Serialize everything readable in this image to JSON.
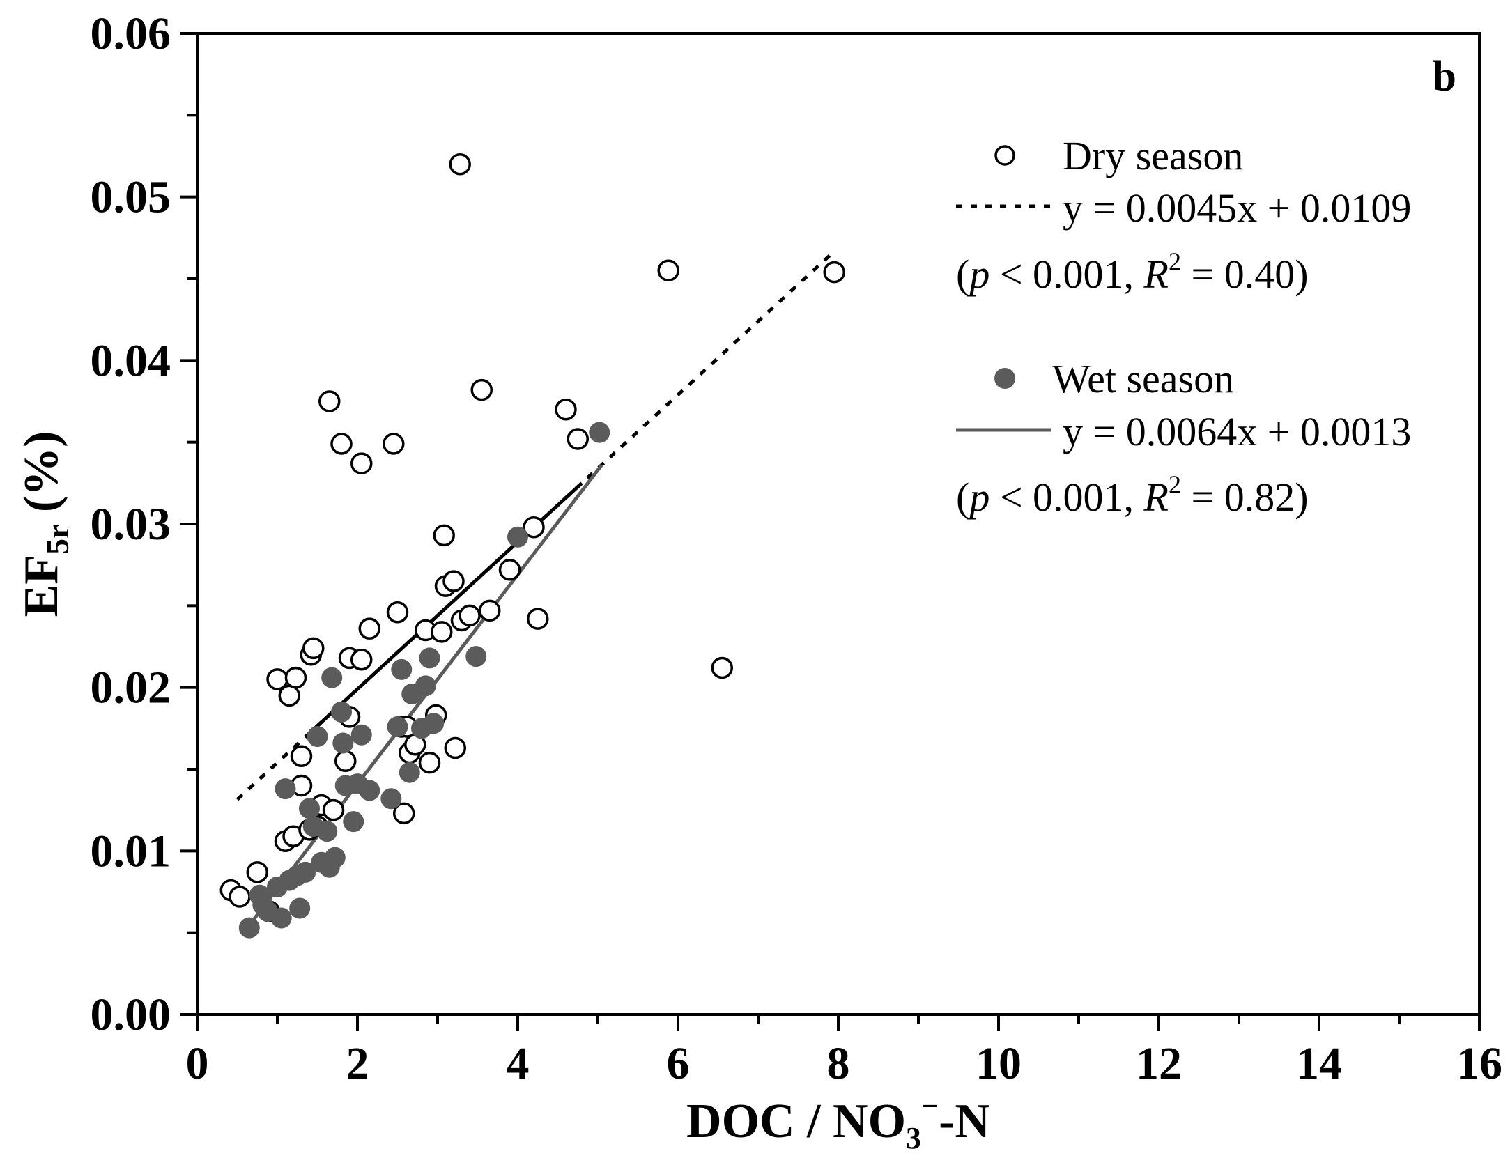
{
  "chart_data": {
    "type": "scatter",
    "panel_label": "b",
    "xlabel": {
      "main": "DOC / NO",
      "sub": "3",
      "sup": "−",
      "tail": "-N"
    },
    "ylabel": {
      "main": "EF",
      "sub": "5r",
      "tail": " (%)"
    },
    "xlim": [
      0,
      16
    ],
    "ylim": [
      0,
      0.06
    ],
    "x_ticks": [
      0,
      2,
      4,
      6,
      8,
      10,
      12,
      14,
      16
    ],
    "x_tick_labels": [
      "0",
      "2",
      "4",
      "6",
      "8",
      "10",
      "12",
      "14",
      "16"
    ],
    "y_ticks": [
      0,
      0.01,
      0.02,
      0.03,
      0.04,
      0.05,
      0.06
    ],
    "y_tick_labels": [
      "0.00",
      "0.01",
      "0.02",
      "0.03",
      "0.04",
      "0.05",
      "0.06"
    ],
    "grid": false,
    "legend_position": "top-right",
    "series": [
      {
        "name": "Dry season",
        "marker": "open-circle",
        "color": "#000000",
        "points": [
          [
            0.42,
            0.0076
          ],
          [
            0.53,
            0.0072
          ],
          [
            0.75,
            0.0087
          ],
          [
            0.9,
            0.0063
          ],
          [
            1.0,
            0.0205
          ],
          [
            1.15,
            0.0195
          ],
          [
            1.1,
            0.0106
          ],
          [
            1.2,
            0.0109
          ],
          [
            1.23,
            0.0206
          ],
          [
            1.3,
            0.0158
          ],
          [
            1.3,
            0.014
          ],
          [
            1.4,
            0.0113
          ],
          [
            1.42,
            0.022
          ],
          [
            1.45,
            0.0224
          ],
          [
            1.5,
            0.0115
          ],
          [
            1.55,
            0.0128
          ],
          [
            1.65,
            0.0375
          ],
          [
            1.7,
            0.0125
          ],
          [
            1.8,
            0.0349
          ],
          [
            1.85,
            0.0155
          ],
          [
            1.9,
            0.0218
          ],
          [
            1.9,
            0.0182
          ],
          [
            2.05,
            0.0337
          ],
          [
            2.05,
            0.0217
          ],
          [
            2.15,
            0.0236
          ],
          [
            2.45,
            0.0349
          ],
          [
            2.5,
            0.0246
          ],
          [
            2.55,
            0.0176
          ],
          [
            2.58,
            0.0123
          ],
          [
            2.62,
            0.0176
          ],
          [
            2.65,
            0.016
          ],
          [
            2.72,
            0.0165
          ],
          [
            2.85,
            0.0235
          ],
          [
            2.9,
            0.0154
          ],
          [
            2.98,
            0.0183
          ],
          [
            3.05,
            0.0234
          ],
          [
            3.08,
            0.0293
          ],
          [
            3.1,
            0.0262
          ],
          [
            3.2,
            0.0265
          ],
          [
            3.22,
            0.0163
          ],
          [
            3.28,
            0.052
          ],
          [
            3.3,
            0.0241
          ],
          [
            3.4,
            0.0244
          ],
          [
            3.55,
            0.0382
          ],
          [
            3.65,
            0.0247
          ],
          [
            3.9,
            0.0272
          ],
          [
            4.2,
            0.0298
          ],
          [
            4.25,
            0.0242
          ],
          [
            4.6,
            0.037
          ],
          [
            4.75,
            0.0352
          ],
          [
            5.88,
            0.0455
          ],
          [
            6.55,
            0.0212
          ],
          [
            7.95,
            0.0454
          ]
        ],
        "fit": {
          "label": "y = 0.0045x + 0.0109",
          "slope": 0.0045,
          "intercept": 0.0109,
          "x_range": [
            0.5,
            7.9
          ],
          "solid_range": [
            1.4,
            4.8
          ],
          "stats": [
            "(",
            "p",
            " < 0.001, ",
            "R",
            "2",
            " = 0.40)"
          ]
        }
      },
      {
        "name": "Wet season",
        "marker": "filled-circle",
        "color": "#5b5b5b",
        "points": [
          [
            0.65,
            0.0053
          ],
          [
            0.78,
            0.0073
          ],
          [
            0.82,
            0.0067
          ],
          [
            0.88,
            0.0063
          ],
          [
            1.0,
            0.0078
          ],
          [
            1.05,
            0.0059
          ],
          [
            1.1,
            0.0138
          ],
          [
            1.15,
            0.0082
          ],
          [
            1.25,
            0.0085
          ],
          [
            1.28,
            0.0065
          ],
          [
            1.35,
            0.0087
          ],
          [
            1.4,
            0.0126
          ],
          [
            1.45,
            0.0115
          ],
          [
            1.5,
            0.017
          ],
          [
            1.55,
            0.0093
          ],
          [
            1.62,
            0.0112
          ],
          [
            1.65,
            0.009
          ],
          [
            1.68,
            0.0206
          ],
          [
            1.72,
            0.0096
          ],
          [
            1.8,
            0.0185
          ],
          [
            1.82,
            0.0166
          ],
          [
            1.85,
            0.014
          ],
          [
            1.95,
            0.0118
          ],
          [
            2.0,
            0.0141
          ],
          [
            2.05,
            0.0171
          ],
          [
            2.15,
            0.0137
          ],
          [
            2.42,
            0.0132
          ],
          [
            2.5,
            0.0176
          ],
          [
            2.55,
            0.0211
          ],
          [
            2.65,
            0.0148
          ],
          [
            2.68,
            0.0196
          ],
          [
            2.8,
            0.0175
          ],
          [
            2.85,
            0.0201
          ],
          [
            2.9,
            0.0218
          ],
          [
            2.95,
            0.0178
          ],
          [
            3.48,
            0.0219
          ],
          [
            4.0,
            0.0292
          ],
          [
            5.02,
            0.0356
          ]
        ],
        "fit": {
          "label": "y = 0.0064x + 0.0013",
          "slope": 0.0064,
          "intercept": 0.0013,
          "x_range": [
            0.65,
            5.05
          ],
          "stats": [
            "(",
            "p",
            " < 0.001, ",
            "R",
            "2",
            " = 0.82)"
          ]
        }
      }
    ]
  }
}
